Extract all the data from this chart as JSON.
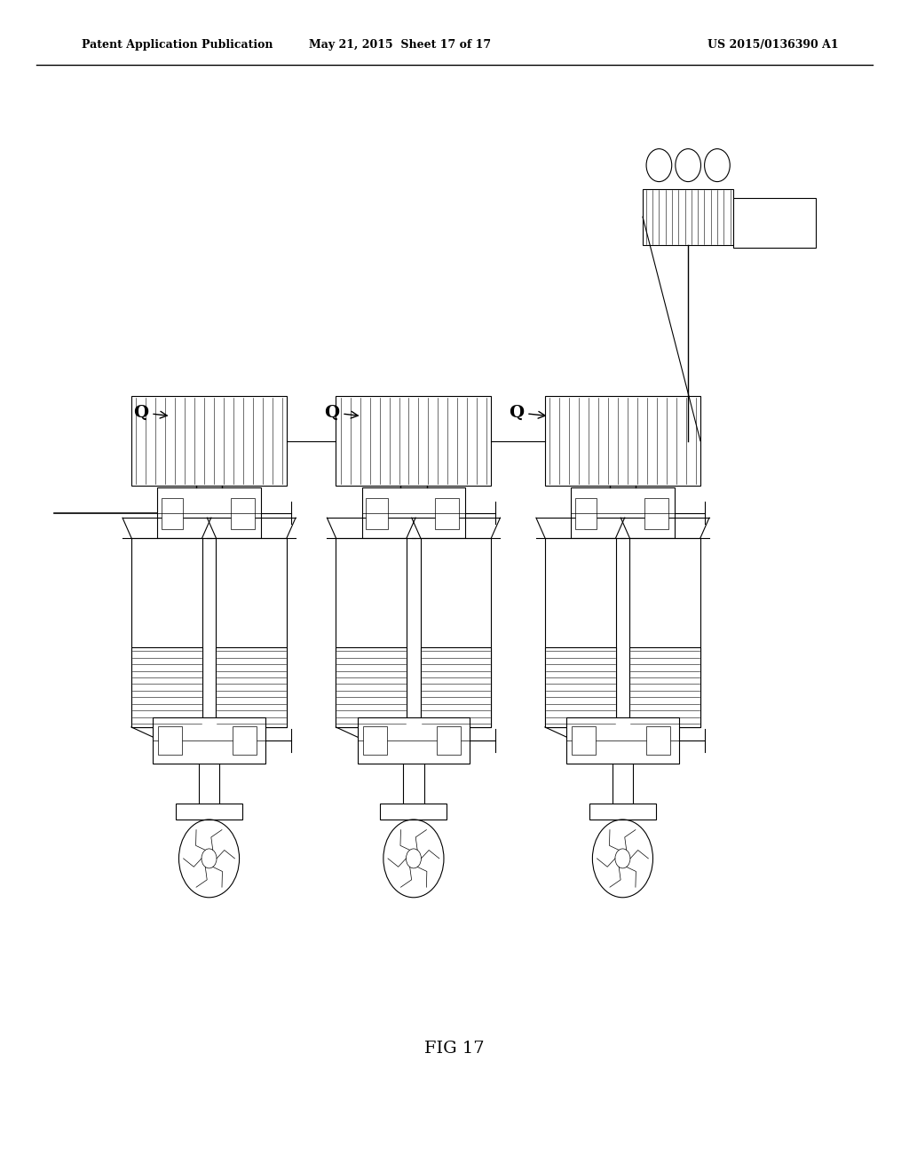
{
  "title_left": "Patent Application Publication",
  "title_center": "May 21, 2015  Sheet 17 of 17",
  "title_right": "US 2015/0136390 A1",
  "fig_label": "FIG 17",
  "background_color": "#ffffff",
  "line_color": "#000000",
  "header_fontsize": 9,
  "fig_label_fontsize": 14,
  "Q_label_fontsize": 14
}
